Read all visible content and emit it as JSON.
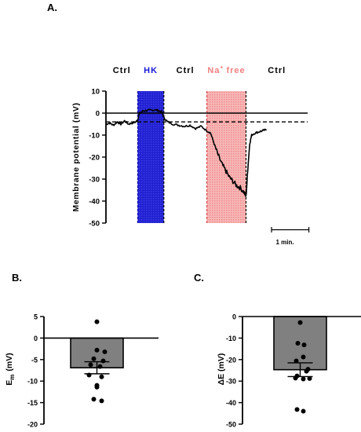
{
  "panels": {
    "a": "A.",
    "b": "B.",
    "c": "C."
  },
  "chart_data": [
    {
      "type": "line",
      "ylabel": "Membrane potential (mV)",
      "ylim": [
        -50,
        10
      ],
      "yticks": [
        10,
        0,
        -10,
        -20,
        -30,
        -40,
        -50
      ],
      "reference_line": 0,
      "baseline_dashed": -4,
      "time_range_min": [
        0,
        5.4
      ],
      "scale_bar": {
        "label": "1 min.",
        "value_min": 1
      },
      "conditions": [
        {
          "label": "Ctrl",
          "start_min": 0.0,
          "end_min": 0.85,
          "color": "#000000",
          "shaded": false
        },
        {
          "label": "HK",
          "start_min": 0.85,
          "end_min": 1.55,
          "color": "#1a1ad6",
          "shaded": true,
          "fill": "#1a1acc"
        },
        {
          "label": "Ctrl",
          "start_min": 1.55,
          "end_min": 2.7,
          "color": "#000000",
          "shaded": false
        },
        {
          "label": "Na",
          "label_sup": "+",
          "label_suffix": "free",
          "start_min": 2.7,
          "end_min": 3.75,
          "color": "#f08080",
          "shaded": true,
          "fill": "#f4a0a0"
        },
        {
          "label": "Ctrl",
          "start_min": 3.75,
          "end_min": 5.4,
          "color": "#000000",
          "shaded": false
        }
      ],
      "series": [
        {
          "x": [
            0.0,
            0.1,
            0.2,
            0.3,
            0.4,
            0.5,
            0.6,
            0.7,
            0.8,
            0.85,
            0.9,
            1.0,
            1.1,
            1.2,
            1.3,
            1.4,
            1.5,
            1.55,
            1.65,
            1.8,
            1.95,
            2.1,
            2.25,
            2.4,
            2.55,
            2.7,
            2.8,
            2.9,
            3.0,
            3.1,
            3.2,
            3.3,
            3.4,
            3.5,
            3.6,
            3.7,
            3.75,
            3.8,
            3.85,
            3.9,
            4.0,
            4.1,
            4.2,
            4.3
          ],
          "y": [
            -5,
            -4.5,
            -5.5,
            -4,
            -5,
            -3.5,
            -5,
            -4.5,
            -4,
            -3,
            0,
            1,
            1.2,
            1.3,
            1.5,
            1.2,
            0.5,
            -2,
            -4,
            -5,
            -5.5,
            -6,
            -5.5,
            -7,
            -6,
            -8,
            -9,
            -14,
            -19,
            -23,
            -26,
            -29,
            -31,
            -33,
            -34,
            -36,
            -38,
            -25,
            -14,
            -10,
            -9,
            -8.5,
            -8,
            -7.5
          ]
        }
      ]
    },
    {
      "type": "bar",
      "ylabel": "Em (mV)",
      "ylabel_main": "E",
      "ylabel_sub": "m",
      "ylabel_unit": "(mV)",
      "ylim": [
        -20,
        5
      ],
      "yticks": [
        5,
        0,
        -5,
        -10,
        -15,
        -20
      ],
      "bar_value": -6.9,
      "bar_color": "#808080",
      "error": 1.4,
      "points": [
        3.8,
        -2.8,
        -3.2,
        -4.8,
        -5.3,
        -6.2,
        -6.6,
        -8.6,
        -9.0,
        -11.0,
        -11.4,
        -14.2,
        -14.6
      ]
    },
    {
      "type": "bar",
      "ylabel": "ΔE (mV)",
      "ylim": [
        -50,
        0
      ],
      "yticks": [
        0,
        -10,
        -20,
        -30,
        -40,
        -50
      ],
      "bar_value": -24.7,
      "bar_color": "#808080",
      "error": 3.2,
      "points": [
        -2.8,
        -12.4,
        -13.2,
        -18.8,
        -20.6,
        -24.5,
        -25.4,
        -27.6,
        -28.6,
        -29.0,
        -28.8,
        -43.2,
        -44.0
      ]
    }
  ]
}
